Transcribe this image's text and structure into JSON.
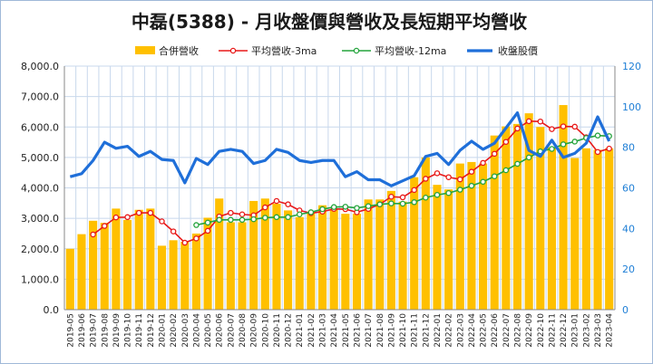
{
  "colors": {
    "revenue": "#ffc000",
    "ma3": "#e81818",
    "ma12": "#23a33c",
    "price": "#1f6fd9",
    "grid": "#c8d8ec",
    "right_axis_text": "#1f7fd6"
  },
  "chart_data": {
    "type": "bar",
    "title": "中磊(5388)  - 月收盤價與營收及長短期平均營收",
    "legend_position": "top",
    "grid": true,
    "categories": [
      "2019-05",
      "2019-06",
      "2019-07",
      "2019-08",
      "2019-09",
      "2019-10",
      "2019-11",
      "2019-12",
      "2020-01",
      "2020-02",
      "2020-03",
      "2020-04",
      "2020-05",
      "2020-06",
      "2020-07",
      "2020-08",
      "2020-09",
      "2020-10",
      "2020-11",
      "2020-12",
      "2021-01",
      "2021-02",
      "2021-03",
      "2021-04",
      "2021-05",
      "2021-06",
      "2021-07",
      "2021-08",
      "2021-09",
      "2021-10",
      "2021-11",
      "2021-12",
      "2022-01",
      "2022-02",
      "2022-03",
      "2022-04",
      "2022-05",
      "2022-06",
      "2022-07",
      "2022-08",
      "2022-09",
      "2022-10",
      "2022-11",
      "2022-12",
      "2023-01",
      "2023-02",
      "2023-03",
      "2023-04"
    ],
    "y_left": {
      "range": [
        0,
        8000
      ],
      "ticks": [
        0,
        1000,
        2000,
        3000,
        4000,
        5000,
        6000,
        7000,
        8000
      ],
      "tick_labels": [
        "0.0",
        "1,000.0",
        "2,000.0",
        "3,000.0",
        "4,000.0",
        "5,000.0",
        "6,000.0",
        "7,000.0",
        "8,000.0"
      ]
    },
    "y_right": {
      "range": [
        0,
        120
      ],
      "ticks": [
        0,
        20,
        40,
        60,
        80,
        100,
        120
      ],
      "tick_labels": [
        "0",
        "20",
        "40",
        "60",
        "80",
        "100",
        "120"
      ]
    },
    "series": [
      {
        "name": "合併營收",
        "type": "bar",
        "axis": "left",
        "values": [
          2000,
          2480,
          2920,
          2850,
          3320,
          2950,
          3280,
          3320,
          2100,
          2280,
          2230,
          2500,
          3020,
          3650,
          2870,
          2870,
          3570,
          3650,
          3480,
          3260,
          3040,
          3200,
          3430,
          3300,
          3150,
          3150,
          3620,
          3620,
          3900,
          3550,
          4350,
          5000,
          4100,
          3950,
          4800,
          4850,
          4800,
          5720,
          6020,
          6100,
          6450,
          6000,
          5330,
          6720,
          4980,
          5300,
          5250,
          5300
        ],
        "color_key": "revenue"
      },
      {
        "name": "平均營收-3ma",
        "type": "line",
        "axis": "left",
        "values": [
          null,
          null,
          2470,
          2750,
          3030,
          3040,
          3180,
          3180,
          2900,
          2570,
          2200,
          2340,
          2590,
          3060,
          3180,
          3130,
          3100,
          3360,
          3570,
          3460,
          3260,
          3170,
          3220,
          3310,
          3300,
          3200,
          3310,
          3460,
          3710,
          3690,
          3930,
          4300,
          4480,
          4350,
          4280,
          4530,
          4820,
          5120,
          5510,
          5950,
          6190,
          6180,
          5930,
          6020,
          6010,
          5660,
          5180,
          5290
        ],
        "color_key": "ma3"
      },
      {
        "name": "平均營收-12ma",
        "type": "line",
        "axis": "left",
        "values": [
          null,
          null,
          null,
          null,
          null,
          null,
          null,
          null,
          null,
          null,
          null,
          2780,
          2860,
          2950,
          2950,
          2950,
          2970,
          3020,
          3040,
          3040,
          3130,
          3200,
          3300,
          3370,
          3380,
          3340,
          3400,
          3460,
          3490,
          3480,
          3530,
          3680,
          3770,
          3830,
          3940,
          4070,
          4200,
          4380,
          4580,
          4790,
          5000,
          5200,
          5280,
          5430,
          5520,
          5640,
          5720,
          5700
        ],
        "color_key": "ma12"
      },
      {
        "name": "收盤股價",
        "type": "line",
        "axis": "right",
        "values": [
          65.5,
          67,
          73.5,
          82.5,
          79.5,
          80.5,
          75.5,
          78,
          74,
          73.5,
          62.5,
          74.5,
          71.5,
          78,
          79,
          78,
          72,
          73.5,
          79,
          77.5,
          73.5,
          72.5,
          73.5,
          73.5,
          65.5,
          68,
          64,
          64,
          61,
          63.5,
          66,
          75.5,
          77,
          71.5,
          78.5,
          83,
          79,
          82,
          89.5,
          97,
          78.5,
          75.5,
          83.5,
          75,
          77,
          82,
          95,
          83
        ],
        "color_key": "price"
      }
    ]
  }
}
